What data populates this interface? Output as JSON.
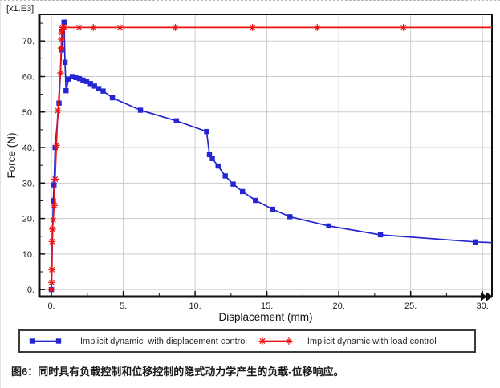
{
  "figure": {
    "scale_label": "[x1.E3]",
    "caption": "图6：同时具有负载控制和位移控制的隐式动力学产生的负载-位移响应。"
  },
  "chart_data": {
    "type": "line",
    "title": "",
    "xlabel": "Displacement (mm)",
    "ylabel": "Force (N)",
    "y_scale_note": "[x1.E3]",
    "xlim": [
      -0.84,
      30.66
    ],
    "ylim": [
      -2.0,
      77.5
    ],
    "grid": "major",
    "legend_position": "bottom-box",
    "colors": {
      "grid": "#cbcbcb",
      "axis": "#111111",
      "tick_text": "#1c1c1c"
    },
    "xticks": {
      "major": [
        0,
        5,
        10,
        15,
        20,
        25,
        30
      ],
      "labels": [
        "0.",
        "5.",
        "10.",
        "15.",
        "20.",
        "25.",
        "30."
      ],
      "minor": [
        2.5,
        7.5,
        12.5,
        17.5,
        22.5,
        27.5
      ]
    },
    "yticks": {
      "major": [
        0,
        10,
        20,
        30,
        40,
        50,
        60,
        70
      ],
      "labels": [
        "0.",
        "10.",
        "20.",
        "30.",
        "40.",
        "50.",
        "60.",
        "70."
      ],
      "minor": [
        5,
        15,
        25,
        35,
        45,
        55,
        65,
        75
      ]
    },
    "series": [
      {
        "name": "Implicit dynamic  with displacement control",
        "color": "#2525d2",
        "marker": "square",
        "points": [
          [
            0,
            0
          ],
          [
            0.13,
            25
          ],
          [
            0.18,
            29.5
          ],
          [
            0.26,
            40
          ],
          [
            0.53,
            52.5
          ],
          [
            0.7,
            67.5
          ],
          [
            0.88,
            75.3
          ],
          [
            0.95,
            64
          ],
          [
            1.02,
            56
          ],
          [
            1.2,
            59.3
          ],
          [
            1.45,
            60
          ],
          [
            1.7,
            59.7
          ],
          [
            1.95,
            59.4
          ],
          [
            2.2,
            59.0
          ],
          [
            2.45,
            58.6
          ],
          [
            2.72,
            58.0
          ],
          [
            3.0,
            57.3
          ],
          [
            3.3,
            56.6
          ],
          [
            3.6,
            55.9
          ],
          [
            4.25,
            54.0
          ],
          [
            6.2,
            50.5
          ],
          [
            8.7,
            47.5
          ],
          [
            10.8,
            44.5
          ],
          [
            11.0,
            38.0
          ],
          [
            11.2,
            36.9
          ],
          [
            11.6,
            34.8
          ],
          [
            12.1,
            32.0
          ],
          [
            12.65,
            29.7
          ],
          [
            13.3,
            27.6
          ],
          [
            14.2,
            25.1
          ],
          [
            15.4,
            22.6
          ],
          [
            16.6,
            20.5
          ],
          [
            19.3,
            17.9
          ],
          [
            22.9,
            15.4
          ],
          [
            29.5,
            13.4
          ]
        ],
        "line_tail": [
          [
            30.66,
            13.2
          ]
        ]
      },
      {
        "name": "Implicit dynamic with load control",
        "color": "#ee1111",
        "marker": "asterisk",
        "points": [
          [
            0,
            0
          ],
          [
            0.02,
            2.0
          ],
          [
            0.04,
            5.6
          ],
          [
            0.05,
            13.5
          ],
          [
            0.07,
            17.0
          ],
          [
            0.13,
            19.6
          ],
          [
            0.19,
            23.7
          ],
          [
            0.26,
            31.1
          ],
          [
            0.35,
            40.6
          ],
          [
            0.45,
            50.4
          ],
          [
            0.63,
            61.0
          ],
          [
            0.68,
            68.0
          ],
          [
            0.7,
            70.5
          ],
          [
            0.72,
            72.3
          ],
          [
            0.74,
            73.3
          ],
          [
            0.78,
            73.8
          ],
          [
            0.9,
            73.8
          ],
          [
            1.93,
            73.8
          ],
          [
            2.92,
            73.8
          ],
          [
            4.78,
            73.8
          ],
          [
            8.63,
            73.8
          ],
          [
            14.0,
            73.8
          ],
          [
            18.5,
            73.8
          ],
          [
            24.5,
            73.8
          ]
        ],
        "line_tail": [
          [
            30.66,
            73.8
          ]
        ]
      }
    ]
  }
}
